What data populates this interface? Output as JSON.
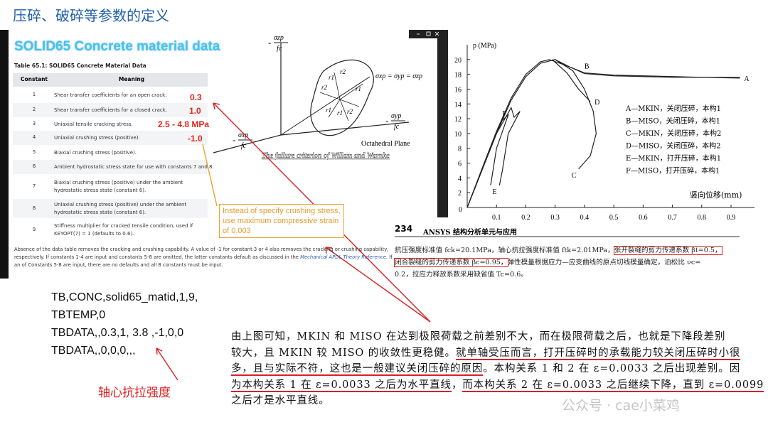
{
  "title": "压碎、破碎等参数的定义",
  "ansys_panel": {
    "heading": "SOLID65 Concrete material data",
    "table": {
      "caption": "Table 65.1: SOLID65 Concrete Material Data",
      "columns": [
        "Constant",
        "Meaning"
      ],
      "rows": [
        [
          "1",
          "Shear transfer coefficients for an open crack."
        ],
        [
          "2",
          "Shear transfer coefficients for a closed crack."
        ],
        [
          "3",
          "Uniaxial tensile cracking stress."
        ],
        [
          "4",
          "Uniaxial crushing stress (positive)."
        ],
        [
          "5",
          "Biaxial crushing stress (positive)."
        ],
        [
          "6",
          "Ambient hydrostatic stress state for use with constants 7 and 8."
        ],
        [
          "7",
          "Biaxial crushing stress (positive) under the ambient hydrostatic stress state (constant 6)."
        ],
        [
          "8",
          "Uniaxial crushing stress (positive) under the ambient hydrostatic stress state (constant 6)."
        ],
        [
          "9",
          "Stiffness multiplier for cracked tensile condition, used if KEYOPT(7) = 1 (defaults to 0.6)."
        ]
      ]
    },
    "annotations": [
      "0.3",
      "1.0",
      "2.5 - 4.8 MPa",
      "-1.0"
    ],
    "note_box": "Instead of specify crushing stress, use maximum compressive strain of 0.003",
    "footnote": {
      "before": "Absence of the data table removes the cracking and crushing capability. A value of -1 for constant 3 or 4 also removes the cracking or crushing capability, respectively. If constants 1-4 are input and constants 5-8 are omitted, the latter constants default as discussed in the ",
      "link": "Mechanical APDL Theory Reference",
      "after": ". If an of Constants 5-8 are input, there are no defaults and all 8 constants must be input."
    }
  },
  "diagram": {
    "axis_z": {
      "sign": "-",
      "num": "σzp",
      "den": "fc"
    },
    "axis_y": {
      "sign": "-",
      "num": "σyp",
      "den": "fc"
    },
    "axis_x": {
      "sign": "-",
      "num": "σxp",
      "den": "fc"
    },
    "hydrostatic": "σxp = σyp = σzp",
    "plane": "Octahedral Plane",
    "radii": [
      "r1",
      "r2",
      "r2",
      "r1",
      "r2",
      "r1",
      "r1"
    ],
    "caption": "The failure criterion of Willam and Warnke"
  },
  "chart": {
    "type": "line",
    "y_label": "p (MPa)",
    "x_label": "竖向位移(mm)",
    "origin_label": "0",
    "xlim": [
      0,
      0.98
    ],
    "ylim": [
      0,
      22
    ],
    "xticks": [
      0.1,
      0.2,
      0.3,
      0.4,
      0.5,
      0.6,
      0.7,
      0.8,
      0.9
    ],
    "yticks": [
      2,
      4,
      6,
      8,
      10,
      12,
      14,
      16,
      18,
      20
    ],
    "color": "#222222",
    "series": [
      {
        "label": "A",
        "name": "A—MKIN，关闭压碎，本构1",
        "x": [
          0,
          0.05,
          0.1,
          0.15,
          0.2,
          0.25,
          0.3,
          0.35,
          0.4,
          0.5,
          0.6,
          0.7,
          0.8,
          0.93
        ],
        "y": [
          0,
          5,
          10,
          14.5,
          17.7,
          19.5,
          20,
          19,
          18.1,
          17.8,
          17.7,
          17.6,
          17.6,
          17.5
        ]
      },
      {
        "label": "B",
        "name": "B—MISO，关闭压碎，本构1",
        "x": [
          0,
          0.05,
          0.1,
          0.15,
          0.2,
          0.25,
          0.28,
          0.33,
          0.4,
          0.5,
          0.6,
          0.7,
          0.8,
          0.93
        ],
        "y": [
          0,
          5.2,
          10.3,
          14.8,
          18,
          19.7,
          20,
          19.3,
          18.2,
          17.9,
          17.8,
          17.7,
          17.6,
          17.6
        ]
      },
      {
        "label": "C",
        "name": "C—MKIN，关闭压碎，本构2",
        "x": [
          0.3,
          0.36,
          0.4,
          0.43,
          0.44,
          0.42,
          0.38
        ],
        "y": [
          20,
          18.5,
          16,
          13,
          10,
          7,
          5.2
        ]
      },
      {
        "label": "D",
        "name": "D—MISO，关闭压碎，本构2",
        "x": [
          0.29,
          0.34,
          0.38,
          0.42
        ],
        "y": [
          20,
          18.2,
          16,
          14.3
        ]
      },
      {
        "label": "E",
        "name": "E—MKIN，打开压碎，本构1",
        "x": [
          0,
          0.05,
          0.1,
          0.15,
          0.16,
          0.18,
          0.14,
          0.12,
          0.11
        ],
        "y": [
          0,
          5,
          10,
          13.5,
          12.2,
          13,
          10,
          5,
          3
        ]
      },
      {
        "label": "F",
        "name": "F—MISO，打开压碎，本构1",
        "x": [
          0,
          0.05,
          0.1,
          0.13,
          0.12,
          0.14,
          0.1,
          0.08
        ],
        "y": [
          0,
          5,
          10,
          12.8,
          11.8,
          12.5,
          8,
          3
        ]
      }
    ]
  },
  "book": {
    "page": "234",
    "header": "ANSYS 结构分析单元与应用",
    "lines": [
      [
        {
          "text": "抗压强度标准值 fck=20.1MPa，轴心抗拉强度标准值 ftk=2.01MPa，",
          "mark": false
        },
        {
          "text": "张开裂缝的剪力传递系数 βt=0.5，",
          "mark": true
        }
      ],
      [
        {
          "text": "闭合裂缝的剪力传递系数 βc=0.95，",
          "mark": true
        },
        {
          "text": "弹性模量根据应力—应变曲线的原点切线模量确定，泊松比 νc=",
          "mark": false
        }
      ],
      [
        {
          "text": "0.2，拉应力释放系数采用缺省值 Tc=0.6。",
          "mark": false
        }
      ]
    ]
  },
  "code": [
    "TB,CONC,solid65_matid,1,9,",
    "TBTEMP,0",
    "TBDATA,,0.3,1, 3.8 ,-1,0,0",
    "TBDATA,,0,0,0,,,"
  ],
  "code_note": "轴心抗拉强度",
  "paragraph": [
    [
      {
        "text": "由上图可知，MKIN 和 MISO 在达到极限荷载之前差别不大，而在极限荷载之后，也就是下降段差别",
        "mark": false
      }
    ],
    [
      {
        "text": "较大，且 MKIN 较 MISO 的收敛性更稳健。",
        "mark": false
      },
      {
        "text": "就单轴受压而言，打开压碎时的承载能力较关闭压碎时小很",
        "mark": true
      }
    ],
    [
      {
        "text": "多，且与实际不符，这也是一般建议关闭压碎的原因",
        "mark": true
      },
      {
        "text": "。本构关系 1 和 2 在 ε=0.0033 之后出现差别。因",
        "mark": false
      }
    ],
    [
      {
        "text": "为本构关系 1 在 ε=0.0033 之后为水平直线",
        "mark": true
      },
      {
        "text": "，",
        "mark": false
      },
      {
        "text": "而本构关系 2 在 ε=0.0033 之后继续下降，直到 ε=0.0099",
        "mark": true
      }
    ],
    [
      {
        "text": "之后才是水平直线。",
        "mark": false
      }
    ]
  ],
  "watermark": "公众号 · cae小菜鸡"
}
